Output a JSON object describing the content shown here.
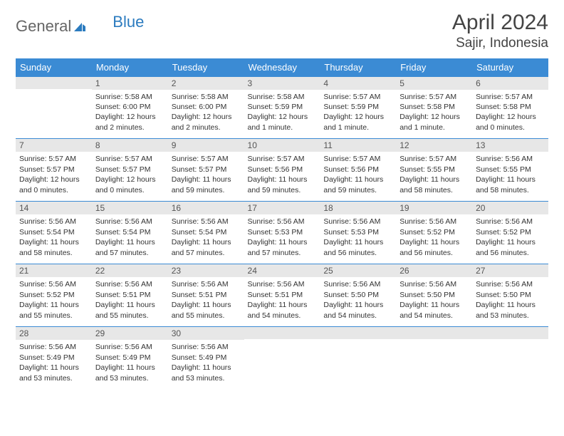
{
  "brand": {
    "prefix": "General",
    "suffix": "Blue"
  },
  "title": "April 2024",
  "location": "Sajir, Indonesia",
  "colors": {
    "header_bg": "#3b8bd4",
    "header_text": "#ffffff",
    "daynum_bg": "#e7e7e7",
    "row_border": "#3b8bd4",
    "text": "#333333",
    "title_text": "#444444"
  },
  "columns": [
    "Sunday",
    "Monday",
    "Tuesday",
    "Wednesday",
    "Thursday",
    "Friday",
    "Saturday"
  ],
  "weeks": [
    [
      {
        "blank": true
      },
      {
        "n": 1,
        "sunrise": "5:58 AM",
        "sunset": "6:00 PM",
        "daylight": "12 hours and 2 minutes."
      },
      {
        "n": 2,
        "sunrise": "5:58 AM",
        "sunset": "6:00 PM",
        "daylight": "12 hours and 2 minutes."
      },
      {
        "n": 3,
        "sunrise": "5:58 AM",
        "sunset": "5:59 PM",
        "daylight": "12 hours and 1 minute."
      },
      {
        "n": 4,
        "sunrise": "5:57 AM",
        "sunset": "5:59 PM",
        "daylight": "12 hours and 1 minute."
      },
      {
        "n": 5,
        "sunrise": "5:57 AM",
        "sunset": "5:58 PM",
        "daylight": "12 hours and 1 minute."
      },
      {
        "n": 6,
        "sunrise": "5:57 AM",
        "sunset": "5:58 PM",
        "daylight": "12 hours and 0 minutes."
      }
    ],
    [
      {
        "n": 7,
        "sunrise": "5:57 AM",
        "sunset": "5:57 PM",
        "daylight": "12 hours and 0 minutes."
      },
      {
        "n": 8,
        "sunrise": "5:57 AM",
        "sunset": "5:57 PM",
        "daylight": "12 hours and 0 minutes."
      },
      {
        "n": 9,
        "sunrise": "5:57 AM",
        "sunset": "5:57 PM",
        "daylight": "11 hours and 59 minutes."
      },
      {
        "n": 10,
        "sunrise": "5:57 AM",
        "sunset": "5:56 PM",
        "daylight": "11 hours and 59 minutes."
      },
      {
        "n": 11,
        "sunrise": "5:57 AM",
        "sunset": "5:56 PM",
        "daylight": "11 hours and 59 minutes."
      },
      {
        "n": 12,
        "sunrise": "5:57 AM",
        "sunset": "5:55 PM",
        "daylight": "11 hours and 58 minutes."
      },
      {
        "n": 13,
        "sunrise": "5:56 AM",
        "sunset": "5:55 PM",
        "daylight": "11 hours and 58 minutes."
      }
    ],
    [
      {
        "n": 14,
        "sunrise": "5:56 AM",
        "sunset": "5:54 PM",
        "daylight": "11 hours and 58 minutes."
      },
      {
        "n": 15,
        "sunrise": "5:56 AM",
        "sunset": "5:54 PM",
        "daylight": "11 hours and 57 minutes."
      },
      {
        "n": 16,
        "sunrise": "5:56 AM",
        "sunset": "5:54 PM",
        "daylight": "11 hours and 57 minutes."
      },
      {
        "n": 17,
        "sunrise": "5:56 AM",
        "sunset": "5:53 PM",
        "daylight": "11 hours and 57 minutes."
      },
      {
        "n": 18,
        "sunrise": "5:56 AM",
        "sunset": "5:53 PM",
        "daylight": "11 hours and 56 minutes."
      },
      {
        "n": 19,
        "sunrise": "5:56 AM",
        "sunset": "5:52 PM",
        "daylight": "11 hours and 56 minutes."
      },
      {
        "n": 20,
        "sunrise": "5:56 AM",
        "sunset": "5:52 PM",
        "daylight": "11 hours and 56 minutes."
      }
    ],
    [
      {
        "n": 21,
        "sunrise": "5:56 AM",
        "sunset": "5:52 PM",
        "daylight": "11 hours and 55 minutes."
      },
      {
        "n": 22,
        "sunrise": "5:56 AM",
        "sunset": "5:51 PM",
        "daylight": "11 hours and 55 minutes."
      },
      {
        "n": 23,
        "sunrise": "5:56 AM",
        "sunset": "5:51 PM",
        "daylight": "11 hours and 55 minutes."
      },
      {
        "n": 24,
        "sunrise": "5:56 AM",
        "sunset": "5:51 PM",
        "daylight": "11 hours and 54 minutes."
      },
      {
        "n": 25,
        "sunrise": "5:56 AM",
        "sunset": "5:50 PM",
        "daylight": "11 hours and 54 minutes."
      },
      {
        "n": 26,
        "sunrise": "5:56 AM",
        "sunset": "5:50 PM",
        "daylight": "11 hours and 54 minutes."
      },
      {
        "n": 27,
        "sunrise": "5:56 AM",
        "sunset": "5:50 PM",
        "daylight": "11 hours and 53 minutes."
      }
    ],
    [
      {
        "n": 28,
        "sunrise": "5:56 AM",
        "sunset": "5:49 PM",
        "daylight": "11 hours and 53 minutes."
      },
      {
        "n": 29,
        "sunrise": "5:56 AM",
        "sunset": "5:49 PM",
        "daylight": "11 hours and 53 minutes."
      },
      {
        "n": 30,
        "sunrise": "5:56 AM",
        "sunset": "5:49 PM",
        "daylight": "11 hours and 53 minutes."
      },
      {
        "blank": true
      },
      {
        "blank": true
      },
      {
        "blank": true
      },
      {
        "blank": true
      }
    ]
  ],
  "labels": {
    "sunrise": "Sunrise:",
    "sunset": "Sunset:",
    "daylight": "Daylight:"
  }
}
